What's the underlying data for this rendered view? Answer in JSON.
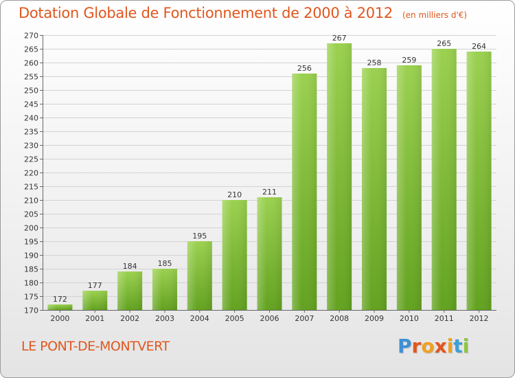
{
  "header": {
    "title": "Dotation Globale de Fonctionnement de 2000 à 2012",
    "unit": "(en milliers d'€)"
  },
  "footer": {
    "place": "LE PONT-DE-MONTVERT",
    "logo_text": "Proxiti"
  },
  "colors": {
    "accent": "#e0561e",
    "bar_light": "#9bd14f",
    "bar_dark": "#62a21f",
    "logo_letters": [
      "#3d8fd6",
      "#e0561e",
      "#f0a020",
      "#e0561e",
      "#f0a020",
      "#3da0d6",
      "#8cc63f"
    ]
  },
  "chart_data": {
    "type": "bar",
    "title": "Dotation Globale de Fonctionnement de 2000 à 2012",
    "subtitle": "(en milliers d'€)",
    "categories": [
      "2000",
      "2001",
      "2002",
      "2003",
      "2004",
      "2005",
      "2006",
      "2007",
      "2008",
      "2009",
      "2010",
      "2011",
      "2012"
    ],
    "values": [
      172,
      177,
      184,
      185,
      195,
      210,
      211,
      256,
      267,
      258,
      259,
      265,
      264
    ],
    "ylim": [
      170,
      270
    ],
    "yticks": [
      170,
      175,
      180,
      185,
      190,
      195,
      200,
      205,
      210,
      215,
      220,
      225,
      230,
      235,
      240,
      245,
      250,
      255,
      260,
      265,
      270
    ],
    "grid": true,
    "xlabel": "",
    "ylabel": ""
  }
}
